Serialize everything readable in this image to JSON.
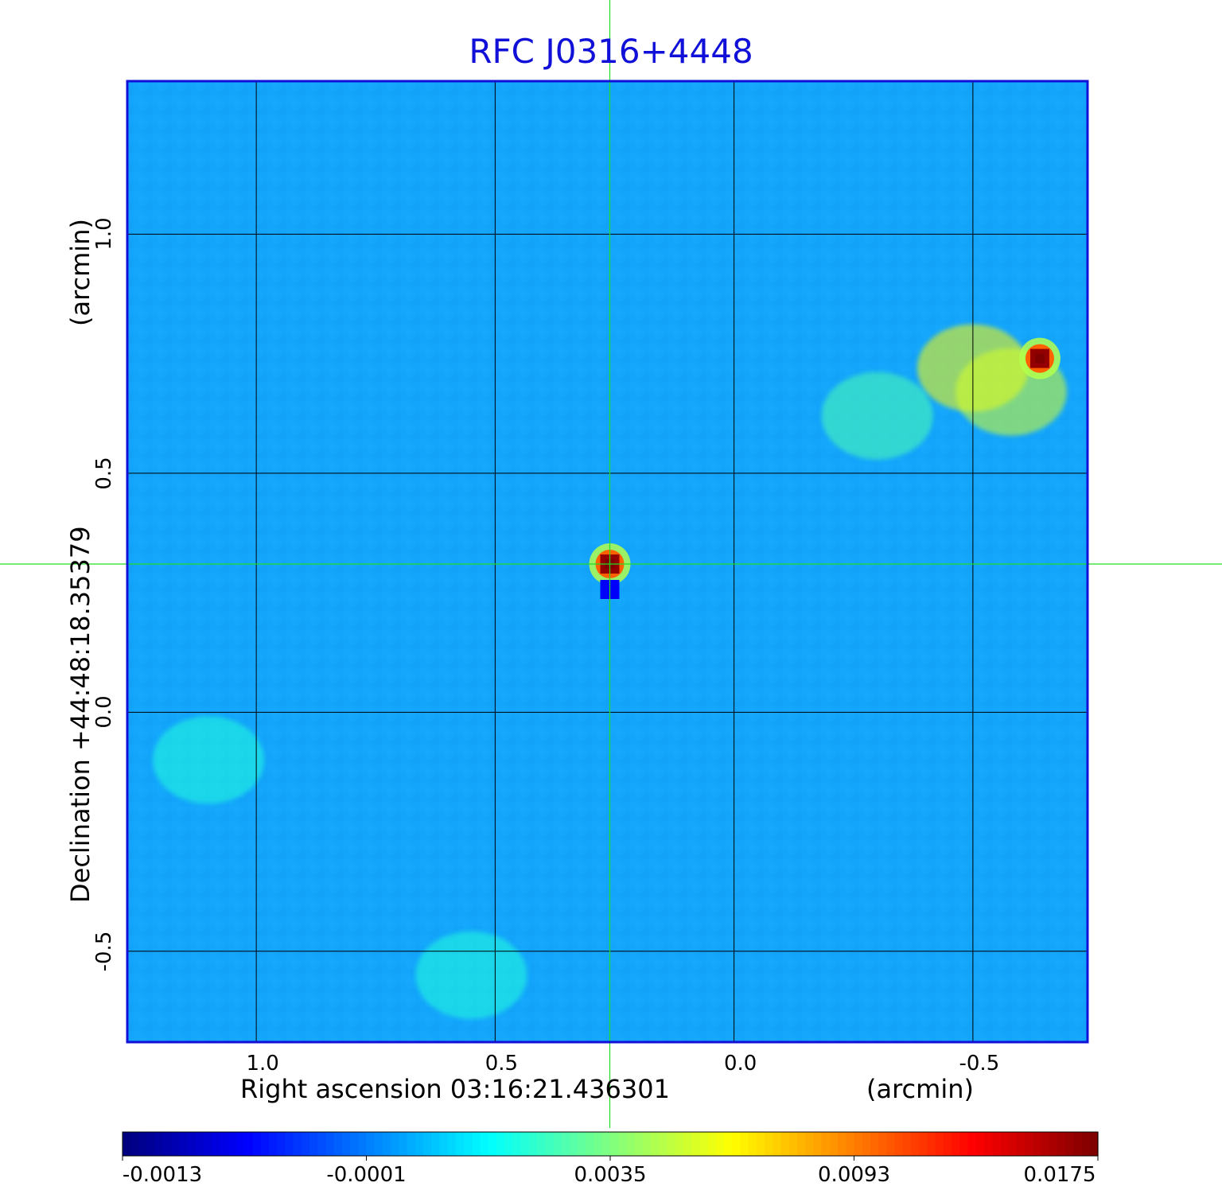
{
  "chart_data": {
    "type": "heatmap",
    "title": "RFC J0316+4448",
    "xlabel": "Right ascension  03:16:21.436301",
    "xunit": "(arcmin)",
    "ylabel": "Declination  +44:48:18.35379",
    "yunit": "(arcmin)",
    "x_axis": {
      "direction": "decreasing",
      "range": [
        1.27,
        -0.74
      ],
      "ticks": [
        "1.0",
        "0.5",
        "0.0",
        "-0.5"
      ],
      "tick_values": [
        1.0,
        0.5,
        0.0,
        -0.5
      ]
    },
    "y_axis": {
      "range": [
        -0.69,
        1.32
      ],
      "ticks": [
        "1.0",
        "0.5",
        "0.0",
        "-0.5"
      ],
      "tick_values": [
        1.0,
        0.5,
        0.0,
        -0.5
      ]
    },
    "grid": true,
    "colormap": "jet",
    "colorbar": {
      "placement": "bottom",
      "ticks": [
        "-0.0013",
        "-0.0001",
        "0.0035",
        "0.0093",
        "0.0175"
      ]
    },
    "crosshair": {
      "x": 0.26,
      "y": 0.31,
      "color": "#22dd22"
    },
    "sources": [
      {
        "x": 0.26,
        "y": 0.31,
        "peak": 0.0175
      },
      {
        "x": -0.64,
        "y": 0.74,
        "peak": 0.0175
      }
    ],
    "extended_emission": [
      {
        "x": -0.5,
        "y": 0.72,
        "level": 0.0065
      },
      {
        "x": -0.58,
        "y": 0.67,
        "level": 0.0055
      },
      {
        "x": -0.3,
        "y": 0.62,
        "level": 0.0028
      },
      {
        "x": 1.1,
        "y": -0.1,
        "level": 0.0022
      },
      {
        "x": 0.55,
        "y": -0.55,
        "level": 0.0022
      }
    ],
    "background_level": 0.0006
  },
  "colors": {
    "title": "#1010d8",
    "frame": "#1010d8",
    "grid": "#000000",
    "crosshair": "#22dd22"
  }
}
